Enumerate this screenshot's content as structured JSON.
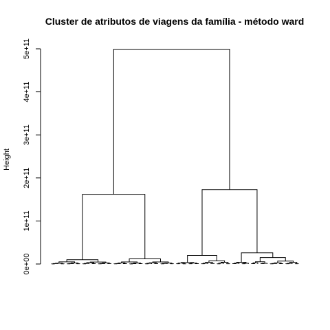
{
  "chart_data": {
    "type": "dendrogram",
    "title": "Cluster de atributos de viagens da família - método ward",
    "ylabel": "Height",
    "xlabel": "",
    "ylim": [
      0,
      500000000000
    ],
    "yticks": [
      {
        "value": 0,
        "label": "0e+00"
      },
      {
        "value": 100000000000,
        "label": "1e+11"
      },
      {
        "value": 200000000000,
        "label": "2e+11"
      },
      {
        "value": 300000000000,
        "label": "3e+11"
      },
      {
        "value": 400000000000,
        "label": "4e+11"
      },
      {
        "value": 500000000000,
        "label": "5e+11"
      }
    ],
    "grid": false,
    "leaf_count": 80,
    "merges": [
      {
        "height": 499000000000,
        "children": [
          "left-cluster",
          "right-cluster"
        ]
      },
      {
        "height": 162000000000,
        "children": [
          "L1",
          "L2"
        ]
      },
      {
        "height": 173000000000,
        "children": [
          "R1",
          "R2"
        ]
      },
      {
        "height": 10000000000,
        "children": [
          "L1a",
          "L1b"
        ]
      },
      {
        "height": 12000000000,
        "children": [
          "L2a",
          "L2b"
        ]
      },
      {
        "height": 20000000000,
        "children": [
          "R1a",
          "R1b"
        ]
      },
      {
        "height": 26000000000,
        "children": [
          "R2a",
          "R2b"
        ]
      },
      {
        "height": 15000000000,
        "children": [
          "R2b1",
          "R2b2"
        ]
      }
    ]
  }
}
